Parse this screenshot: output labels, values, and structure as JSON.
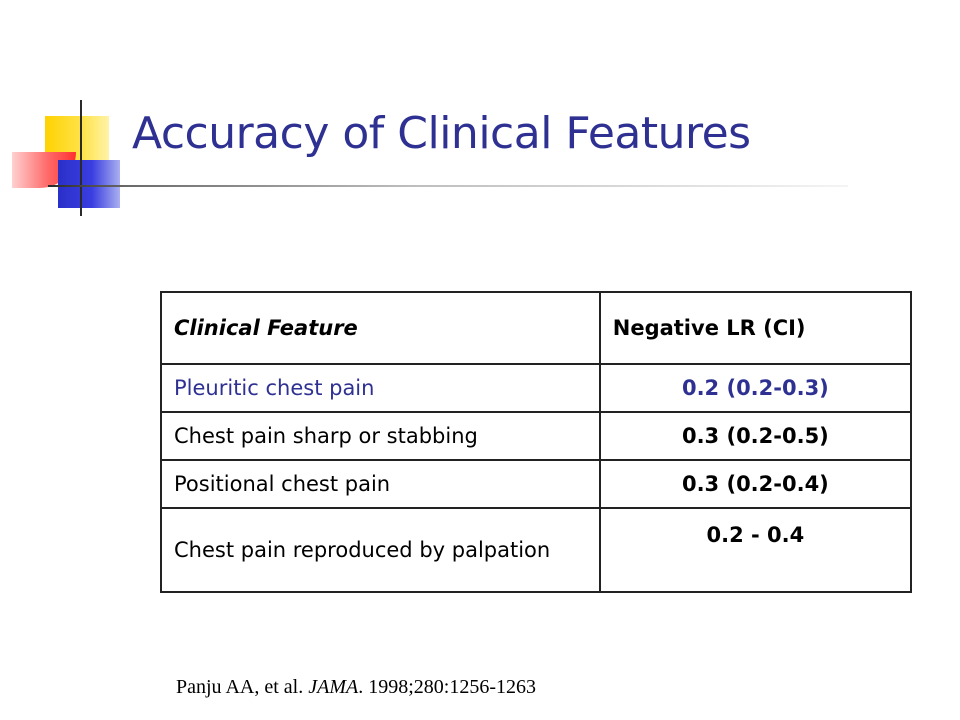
{
  "slide": {
    "title": "Accuracy of Clinical Features"
  },
  "table": {
    "headers": {
      "feature": "Clinical Feature",
      "negative_lr": "Negative LR (CI)"
    },
    "rows": [
      {
        "feature": "Pleuritic chest pain",
        "negative_lr": "0.2 (0.2-0.3)"
      },
      {
        "feature": "Chest pain sharp or stabbing",
        "negative_lr": "0.3 (0.2-0.5)"
      },
      {
        "feature": "Positional chest pain",
        "negative_lr": "0.3 (0.2-0.4)"
      },
      {
        "feature": "Chest pain reproduced by palpation",
        "negative_lr": "0.2  - 0.4"
      }
    ]
  },
  "citation": {
    "authors": "Panju AA, et al. ",
    "journal": "JAMA",
    "details": ". 1998;280:1256-1263"
  },
  "colors": {
    "title": "#2e3192",
    "highlight_row": "#2e3192",
    "deco_yellow": "#ffd200",
    "deco_blue": "#2b2fc9",
    "deco_red": "#ff3030"
  }
}
